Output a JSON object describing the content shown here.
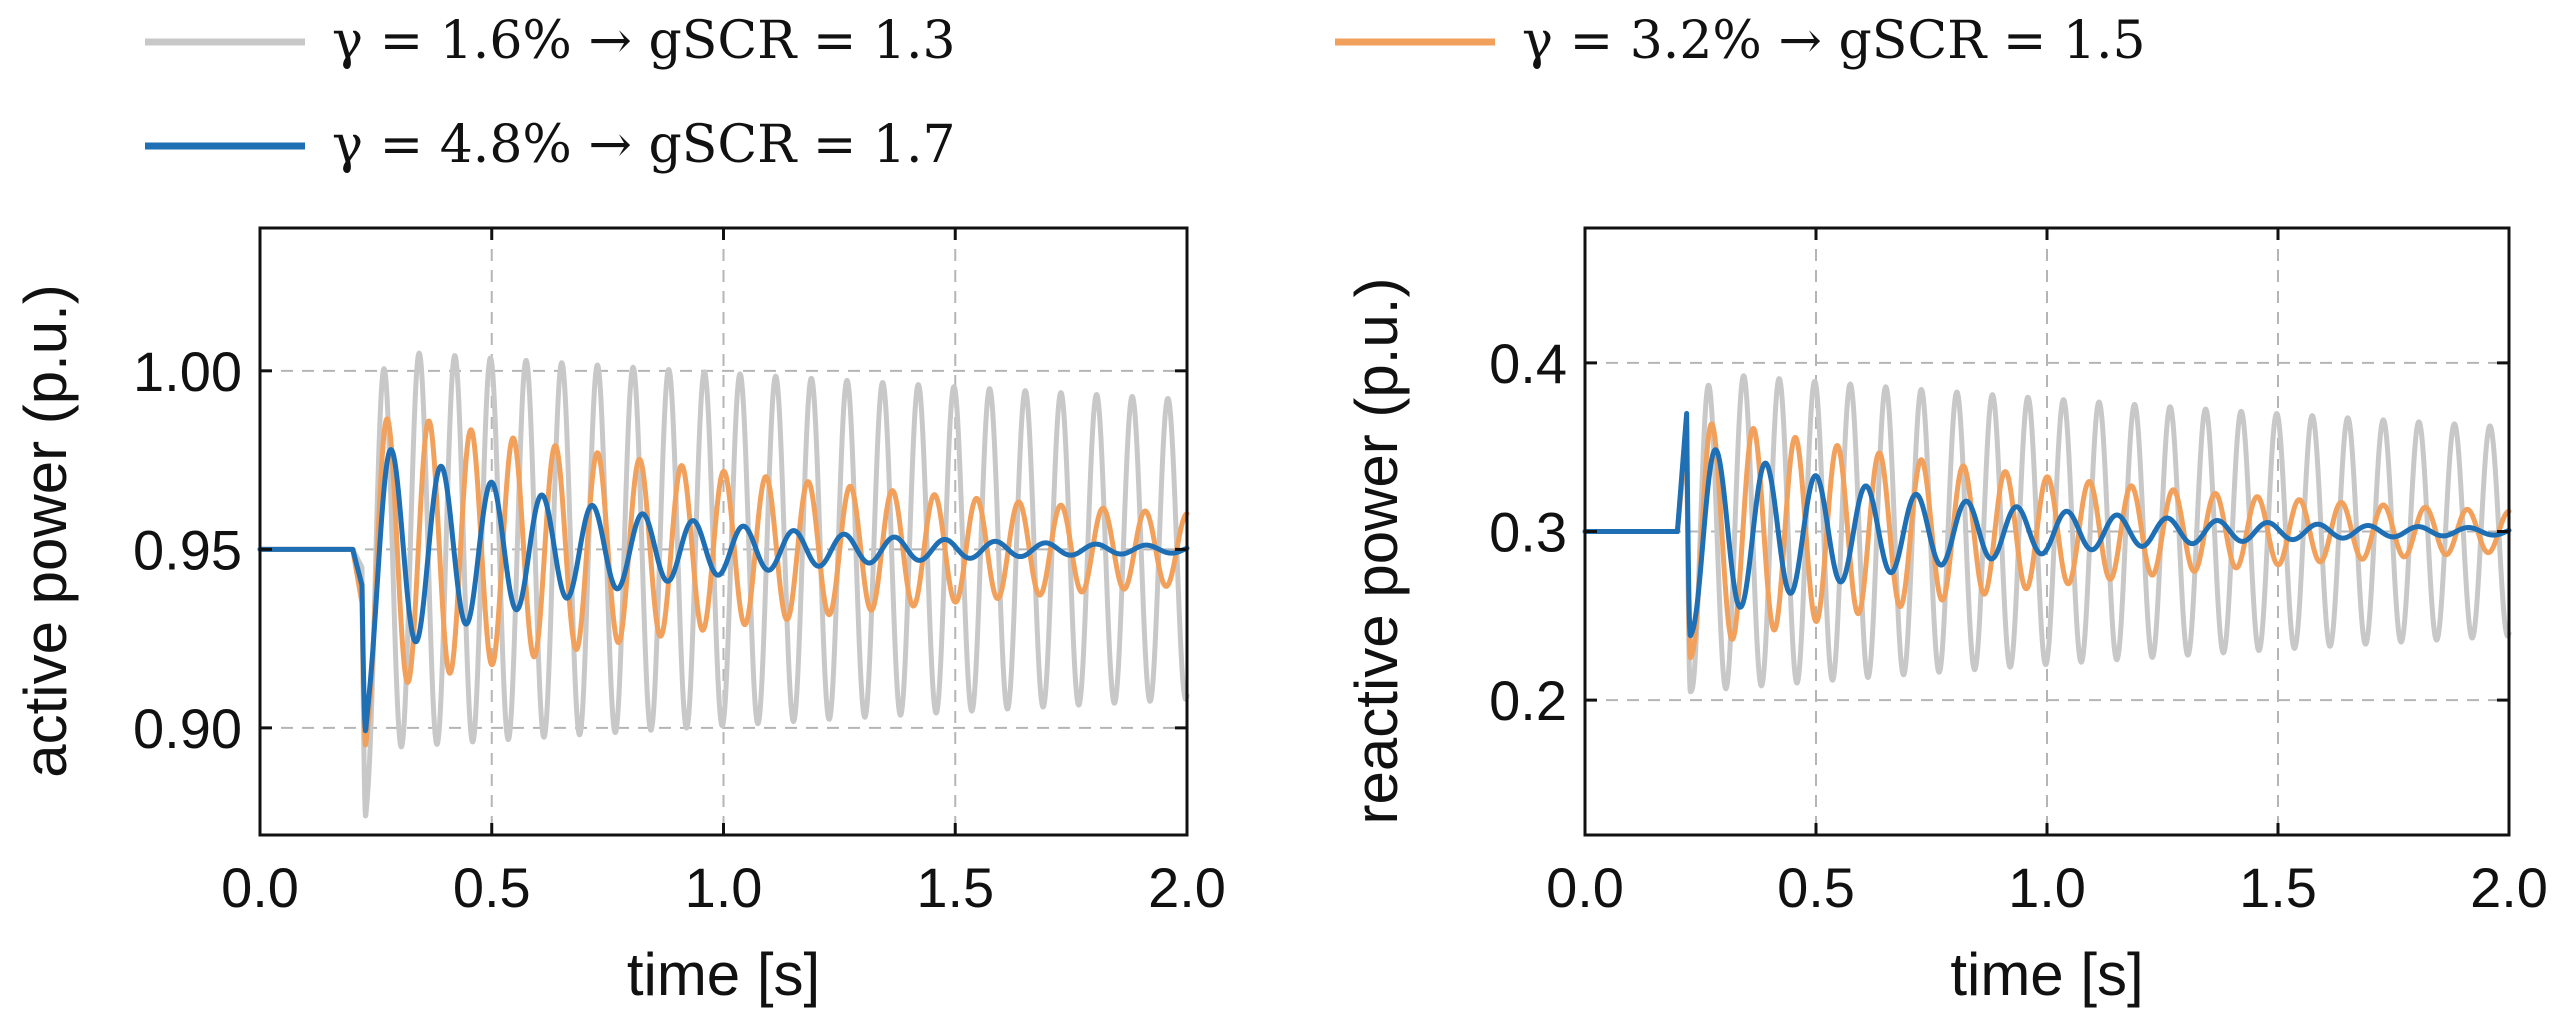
{
  "legend": [
    {
      "label": "γ = 1.6% → gSCR = 1.3",
      "color": "#c8c8c8"
    },
    {
      "label": "γ = 3.2% → gSCR = 1.5",
      "color": "#f2a15c"
    },
    {
      "label": "γ = 4.8% → gSCR = 1.7",
      "color": "#1f6fb5"
    }
  ],
  "chart_data": [
    {
      "type": "line",
      "xlabel": "time [s]",
      "ylabel": "active power (p.u.)",
      "xlim": [
        0.0,
        2.0
      ],
      "ylim": [
        0.87,
        1.04
      ],
      "xticks": [
        0.0,
        0.5,
        1.0,
        1.5,
        2.0
      ],
      "xtick_labels": [
        "0.0",
        "0.5",
        "1.0",
        "1.5",
        "2.0"
      ],
      "yticks": [
        0.9,
        0.95,
        1.0
      ],
      "ytick_labels": [
        "0.90",
        "0.95",
        "1.00"
      ],
      "grid": true,
      "disturbance_time": 0.2,
      "steady_value": 0.95,
      "series": [
        {
          "name": "γ = 1.6% → gSCR = 1.3",
          "color": "#c8c8c8",
          "baseline": 0.95,
          "dip": 0.945,
          "dip_floor": 0.875,
          "amp0": 0.056,
          "amp_end": 0.042,
          "freq": 13.0
        },
        {
          "name": "γ = 3.2% → gSCR = 1.5",
          "color": "#f2a15c",
          "baseline": 0.95,
          "dip": 0.935,
          "dip_floor": 0.895,
          "amp0": 0.04,
          "amp_end": 0.01,
          "freq": 11.0
        },
        {
          "name": "γ = 4.8% → gSCR = 1.7",
          "color": "#1f6fb5",
          "baseline": 0.95,
          "dip": 0.94,
          "dip_floor": 0.899,
          "amp0": 0.032,
          "amp_end": 0.001,
          "freq": 9.2
        }
      ]
    },
    {
      "type": "line",
      "xlabel": "time [s]",
      "ylabel": "reactive power (p.u.)",
      "xlim": [
        0.0,
        2.0
      ],
      "ylim": [
        0.12,
        0.48
      ],
      "xticks": [
        0.0,
        0.5,
        1.0,
        1.5,
        2.0
      ],
      "xtick_labels": [
        "0.0",
        "0.5",
        "1.0",
        "1.5",
        "2.0"
      ],
      "yticks": [
        0.2,
        0.3,
        0.4
      ],
      "ytick_labels": [
        "0.2",
        "0.3",
        "0.4"
      ],
      "grid": true,
      "disturbance_time": 0.2,
      "steady_value": 0.3,
      "series": [
        {
          "name": "γ = 1.6% → gSCR = 1.3",
          "color": "#c8c8c8",
          "baseline": 0.3,
          "dip": 0.36,
          "dip_floor": 0.205,
          "amp0": 0.095,
          "amp_end": 0.062,
          "freq": 13.0
        },
        {
          "name": "γ = 3.2% → gSCR = 1.5",
          "color": "#f2a15c",
          "baseline": 0.3,
          "dip": 0.36,
          "dip_floor": 0.225,
          "amp0": 0.07,
          "amp_end": 0.012,
          "freq": 11.0
        },
        {
          "name": "γ = 4.8% → gSCR = 1.7",
          "color": "#1f6fb5",
          "baseline": 0.3,
          "dip": 0.37,
          "dip_floor": 0.238,
          "amp0": 0.055,
          "amp_end": 0.002,
          "freq": 9.2
        }
      ]
    }
  ]
}
